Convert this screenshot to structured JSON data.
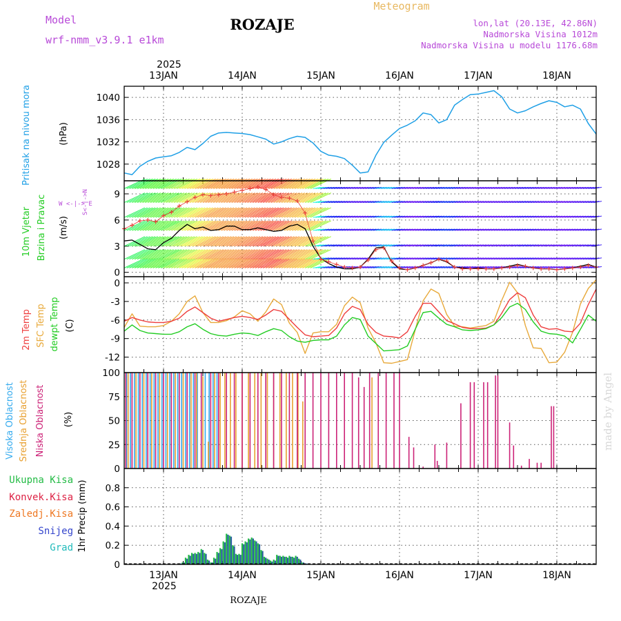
{
  "header": {
    "model_label": "Model",
    "model_name": "wrf-nmm_v3.9.1 e1km",
    "station": "ROZAJE",
    "product": "Meteogram",
    "coords": "lon,lat (20.13E, 42.86N)",
    "elevation": "Nadmorska Visina 1012m",
    "model_elevation": "Nadmorska Visina u modelu 1176.68m",
    "footer_station": "ROZAJE",
    "watermark": "made by Angel"
  },
  "colors": {
    "pressure": "#1e9fe6",
    "wind_obs": "#000000",
    "wind_model": "#e8403a",
    "t2m": "#ee3d3d",
    "tsfc": "#e8a93a",
    "dewpt": "#22cc22",
    "cloud_high": "#33aaee",
    "cloud_mid": "#e8a030",
    "cloud_low": "#cc2277",
    "precip_total": "#22bb44",
    "precip_conv": "#dd2244",
    "precip_frozen": "#ee7722",
    "precip_snow": "#3344cc",
    "precip_graupel": "#22bbbb",
    "axis_label_violet": "#b84ad8",
    "grid": "#555555"
  },
  "time_axis": {
    "year": "2025",
    "day_labels": [
      "13JAN",
      "14JAN",
      "15JAN",
      "16JAN",
      "17JAN",
      "18JAN"
    ],
    "start_day": 12.5,
    "end_day": 18.5
  },
  "panels": {
    "pressure": {
      "ylabel_1": "Pritisak na nivou mora",
      "ylabel_2": "(hPa)"
    },
    "wind": {
      "ylabel_1": "10m Vjetar",
      "ylabel_2": "Brzina i Pravac",
      "ylabel_3": "(m/s)",
      "compass_we": "W  <-|-> E",
      "compass_sn": "S<-|->N"
    },
    "temp": {
      "ylabel_1": "2m Temp",
      "ylabel_2": "SFC Temp",
      "ylabel_3": "dewpt Temp",
      "ylabel_4": "(C)"
    },
    "cloud": {
      "ylabel_1": "Visoka Oblacnost",
      "ylabel_2": "Srednja Oblacnost",
      "ylabel_3": "Niska Oblacnost",
      "ylabel_4": "(%)"
    },
    "precip": {
      "legend": [
        "Ukupna Kisa",
        "Konvek.Kisa",
        "Zaledj.Kisa",
        "Snijeg",
        "Grad"
      ],
      "ylabel": "1hr Precip (mm)"
    }
  },
  "chart_data": [
    {
      "type": "line",
      "panel": "pressure",
      "ylabel": "(hPa)",
      "ylim": [
        1025,
        1042
      ],
      "yticks": [
        1028,
        1032,
        1036,
        1040
      ],
      "x": [
        12.5,
        12.6,
        12.7,
        12.8,
        12.9,
        13.0,
        13.1,
        13.2,
        13.3,
        13.4,
        13.5,
        13.6,
        13.7,
        13.8,
        13.9,
        14.0,
        14.1,
        14.2,
        14.3,
        14.4,
        14.5,
        14.6,
        14.7,
        14.8,
        14.9,
        15.0,
        15.1,
        15.2,
        15.3,
        15.4,
        15.5,
        15.6,
        15.7,
        15.8,
        15.9,
        16.0,
        16.1,
        16.2,
        16.3,
        16.4,
        16.5,
        16.6,
        16.7,
        16.8,
        16.9,
        17.0,
        17.1,
        17.2,
        17.3,
        17.4,
        17.5,
        17.6,
        17.7,
        17.8,
        17.9,
        18.0,
        18.1,
        18.2,
        18.3,
        18.4,
        18.5
      ],
      "series": [
        {
          "values": [
            1026.4,
            1026.1,
            1027.6,
            1028.5,
            1029.1,
            1029.3,
            1029.5,
            1030.1,
            1031.0,
            1030.6,
            1031.7,
            1033.0,
            1033.6,
            1033.7,
            1033.6,
            1033.5,
            1033.3,
            1032.9,
            1032.5,
            1031.6,
            1032.0,
            1032.6,
            1033.0,
            1032.8,
            1031.8,
            1030.3,
            1029.6,
            1029.4,
            1029.0,
            1027.8,
            1026.4,
            1026.6,
            1029.6,
            1031.9,
            1033.2,
            1034.4,
            1035.0,
            1035.8,
            1037.2,
            1036.9,
            1035.4,
            1036.0,
            1038.6,
            1039.6,
            1040.5,
            1040.6,
            1040.9,
            1041.2,
            1040.1,
            1037.9,
            1037.2,
            1037.6,
            1038.3,
            1038.9,
            1039.4,
            1039.1,
            1038.3,
            1038.6,
            1037.9,
            1035.3,
            1033.4
          ]
        }
      ]
    },
    {
      "type": "line",
      "panel": "wind",
      "ylabel": "(m/s)",
      "ylim": [
        -0.5,
        10.5
      ],
      "yticks": [
        0,
        3,
        6,
        9
      ],
      "x": [
        12.5,
        12.6,
        12.7,
        12.8,
        12.9,
        13.0,
        13.1,
        13.2,
        13.3,
        13.4,
        13.5,
        13.6,
        13.7,
        13.8,
        13.9,
        14.0,
        14.1,
        14.2,
        14.3,
        14.4,
        14.5,
        14.6,
        14.7,
        14.8,
        14.9,
        15.0,
        15.1,
        15.2,
        15.3,
        15.4,
        15.5,
        15.6,
        15.7,
        15.8,
        15.9,
        16.0,
        16.1,
        16.2,
        16.3,
        16.4,
        16.5,
        16.6,
        16.7,
        16.8,
        16.9,
        17.0,
        17.1,
        17.2,
        17.3,
        17.4,
        17.5,
        17.6,
        17.7,
        17.8,
        17.9,
        18.0,
        18.1,
        18.2,
        18.3,
        18.4,
        18.5
      ],
      "series": [
        {
          "values": [
            3.6,
            3.7,
            3.2,
            2.7,
            2.6,
            3.4,
            3.9,
            4.8,
            5.5,
            5.0,
            5.2,
            4.8,
            4.9,
            5.3,
            5.3,
            4.9,
            4.9,
            5.1,
            4.9,
            4.7,
            4.8,
            5.3,
            5.5,
            5.0,
            3.0,
            1.6,
            1.0,
            0.6,
            0.4,
            0.4,
            0.6,
            1.5,
            2.8,
            2.9,
            1.2,
            0.4,
            0.3,
            0.5,
            0.8,
            1.1,
            1.5,
            1.2,
            0.6,
            0.5,
            0.4,
            0.5,
            0.4,
            0.4,
            0.5,
            0.7,
            0.9,
            0.7,
            0.5,
            0.4,
            0.4,
            0.3,
            0.4,
            0.5,
            0.7,
            0.9,
            0.6
          ]
        },
        {
          "values": [
            5.0,
            5.4,
            5.9,
            6.0,
            5.8,
            6.5,
            6.9,
            7.6,
            8.1,
            8.6,
            8.9,
            8.8,
            8.9,
            9.0,
            9.2,
            9.4,
            9.6,
            9.8,
            9.5,
            8.9,
            8.6,
            8.5,
            8.2,
            6.8,
            3.6,
            1.5,
            1.2,
            0.9,
            0.6,
            0.5,
            0.6,
            1.4,
            2.6,
            2.8,
            1.3,
            0.5,
            0.3,
            0.5,
            0.8,
            1.1,
            1.5,
            1.3,
            0.6,
            0.4,
            0.4,
            0.4,
            0.4,
            0.4,
            0.5,
            0.6,
            0.8,
            0.7,
            0.5,
            0.4,
            0.4,
            0.3,
            0.4,
            0.5,
            0.6,
            0.8,
            0.6
          ]
        }
      ]
    },
    {
      "type": "line",
      "panel": "temp",
      "ylabel": "(C)",
      "ylim": [
        -14.5,
        1
      ],
      "yticks": [
        0,
        -3,
        -6,
        -9,
        -12
      ],
      "x": [
        12.5,
        12.6,
        12.7,
        12.8,
        12.9,
        13.0,
        13.1,
        13.2,
        13.3,
        13.4,
        13.5,
        13.6,
        13.7,
        13.8,
        13.9,
        14.0,
        14.1,
        14.2,
        14.3,
        14.4,
        14.5,
        14.6,
        14.7,
        14.8,
        14.9,
        15.0,
        15.1,
        15.2,
        15.3,
        15.4,
        15.5,
        15.6,
        15.7,
        15.8,
        15.9,
        16.0,
        16.1,
        16.2,
        16.3,
        16.4,
        16.5,
        16.6,
        16.7,
        16.8,
        16.9,
        17.0,
        17.1,
        17.2,
        17.3,
        17.4,
        17.5,
        17.6,
        17.7,
        17.8,
        17.9,
        18.0,
        18.1,
        18.2,
        18.3,
        18.4,
        18.5
      ],
      "series": [
        {
          "values": [
            -6.2,
            -5.6,
            -6.0,
            -6.3,
            -6.4,
            -6.4,
            -6.2,
            -5.7,
            -4.6,
            -3.9,
            -4.8,
            -5.7,
            -6.2,
            -5.9,
            -5.6,
            -5.4,
            -5.6,
            -5.9,
            -5.2,
            -4.3,
            -4.6,
            -5.9,
            -7.2,
            -8.4,
            -8.7,
            -8.6,
            -8.5,
            -7.3,
            -5.0,
            -3.8,
            -4.3,
            -6.7,
            -8.0,
            -8.6,
            -8.7,
            -8.9,
            -7.9,
            -5.4,
            -3.3,
            -3.3,
            -4.7,
            -6.1,
            -6.6,
            -7.2,
            -7.4,
            -7.4,
            -7.3,
            -6.8,
            -4.9,
            -2.7,
            -1.6,
            -2.4,
            -5.2,
            -7.1,
            -7.5,
            -7.4,
            -7.8,
            -7.9,
            -6.5,
            -3.5,
            -1.0
          ]
        },
        {
          "values": [
            -7.2,
            -5.0,
            -7.0,
            -7.1,
            -7.1,
            -6.9,
            -6.2,
            -5.0,
            -3.0,
            -2.1,
            -4.8,
            -6.4,
            -6.4,
            -6.1,
            -5.5,
            -4.5,
            -5.0,
            -6.2,
            -4.7,
            -2.6,
            -3.5,
            -6.5,
            -8.0,
            -11.4,
            -8.1,
            -7.9,
            -7.9,
            -6.7,
            -3.7,
            -2.3,
            -3.2,
            -7.3,
            -9.7,
            -12.9,
            -13.0,
            -12.7,
            -12.4,
            -7.6,
            -2.9,
            -1.0,
            -1.7,
            -5.1,
            -7.0,
            -7.1,
            -7.3,
            -7.1,
            -6.9,
            -6.2,
            -2.8,
            0.1,
            -1.6,
            -6.9,
            -10.5,
            -10.6,
            -12.9,
            -12.8,
            -11.2,
            -8.0,
            -3.4,
            -0.9,
            0.5
          ]
        },
        {
          "values": [
            -7.8,
            -6.8,
            -7.7,
            -8.1,
            -8.2,
            -8.3,
            -8.3,
            -7.9,
            -7.1,
            -6.6,
            -7.5,
            -8.2,
            -8.5,
            -8.6,
            -8.3,
            -8.1,
            -8.2,
            -8.5,
            -7.9,
            -7.4,
            -7.7,
            -8.7,
            -9.4,
            -9.6,
            -9.3,
            -9.2,
            -9.2,
            -8.6,
            -6.8,
            -5.6,
            -5.9,
            -8.6,
            -9.8,
            -11.0,
            -10.9,
            -10.8,
            -10.2,
            -7.5,
            -4.8,
            -4.6,
            -5.7,
            -6.7,
            -7.1,
            -7.6,
            -7.7,
            -7.6,
            -7.4,
            -6.8,
            -5.6,
            -3.9,
            -3.3,
            -4.3,
            -6.3,
            -7.8,
            -8.2,
            -8.3,
            -8.6,
            -9.7,
            -7.5,
            -5.2,
            -6.2
          ]
        }
      ]
    },
    {
      "type": "bar",
      "panel": "cloud",
      "ylabel": "(%)",
      "ylim": [
        0,
        100
      ],
      "yticks": [
        0,
        25,
        50,
        75,
        100
      ],
      "series": [
        {
          "name": "Visoka Oblacnost",
          "x": [
            12.53,
            12.58,
            12.63,
            12.68,
            12.73,
            12.78,
            12.83,
            12.88,
            12.93,
            12.98,
            13.03,
            13.08,
            13.13,
            13.18,
            13.23,
            13.28,
            13.33,
            13.38,
            13.43,
            13.48,
            13.53,
            13.58,
            13.63,
            13.68
          ],
          "values": [
            100,
            100,
            100,
            100,
            100,
            100,
            100,
            100,
            100,
            100,
            100,
            100,
            100,
            100,
            100,
            100,
            100,
            100,
            100,
            100,
            100,
            100,
            100,
            100
          ]
        },
        {
          "name": "Srednja Oblacnost",
          "x": [
            12.55,
            12.65,
            12.75,
            12.85,
            12.95,
            13.05,
            13.15,
            13.25,
            13.35,
            13.42,
            13.5,
            13.57,
            13.65,
            13.72,
            13.78,
            13.85,
            13.92,
            14.0,
            14.08,
            14.16,
            14.24,
            14.32,
            14.4,
            14.48,
            14.56,
            14.64,
            14.71,
            14.77,
            15.65
          ],
          "values": [
            100,
            100,
            100,
            100,
            100,
            100,
            100,
            100,
            100,
            100,
            96,
            28,
            100,
            100,
            100,
            100,
            100,
            100,
            100,
            100,
            100,
            100,
            100,
            100,
            100,
            100,
            100,
            70,
            95
          ]
        },
        {
          "name": "Niska Oblacnost",
          "x": [
            12.52,
            12.6,
            12.7,
            12.8,
            12.9,
            13.0,
            13.1,
            13.2,
            13.3,
            13.4,
            13.48,
            13.6,
            13.7,
            13.8,
            13.9,
            14.0,
            14.1,
            14.2,
            14.3,
            14.4,
            14.5,
            14.6,
            14.7,
            14.8,
            14.9,
            15.0,
            15.1,
            15.2,
            15.3,
            15.4,
            15.48,
            15.55,
            15.62,
            15.73,
            15.83,
            15.93,
            16.0,
            16.12,
            16.18,
            16.3,
            16.45,
            16.48,
            16.6,
            16.78,
            16.9,
            16.95,
            17.07,
            17.12,
            17.22,
            17.25,
            17.4,
            17.45,
            17.55,
            17.65,
            17.75,
            17.8,
            17.93,
            17.96
          ],
          "values": [
            100,
            100,
            100,
            100,
            100,
            100,
            100,
            100,
            100,
            100,
            100,
            100,
            100,
            100,
            100,
            100,
            100,
            100,
            100,
            100,
            100,
            100,
            100,
            100,
            100,
            100,
            100,
            100,
            100,
            100,
            95,
            85,
            100,
            100,
            100,
            100,
            100,
            33,
            22,
            2,
            25,
            8,
            27,
            68,
            90,
            90,
            90,
            90,
            97,
            97,
            48,
            24,
            3,
            10,
            6,
            6,
            65,
            65
          ]
        }
      ]
    },
    {
      "type": "bar",
      "panel": "precip",
      "ylabel": "1hr Precip (mm)",
      "ylim": [
        0,
        1.0
      ],
      "yticks": [
        0,
        0.2,
        0.4,
        0.6,
        0.8
      ],
      "x": [
        13.21,
        13.25,
        13.29,
        13.33,
        13.37,
        13.41,
        13.45,
        13.49,
        13.53,
        13.57,
        13.61,
        13.65,
        13.69,
        13.73,
        13.77,
        13.81,
        13.85,
        13.89,
        13.93,
        13.97,
        14.01,
        14.05,
        14.09,
        14.13,
        14.17,
        14.21,
        14.25,
        14.29,
        14.33,
        14.37,
        14.41,
        14.45,
        14.49,
        14.53,
        14.57,
        14.61,
        14.65,
        14.69,
        14.73,
        14.77,
        14.81
      ],
      "series": [
        {
          "name": "Ukupna Kisa",
          "values": [
            0.01,
            0.02,
            0.07,
            0.1,
            0.12,
            0.12,
            0.13,
            0.16,
            0.12,
            0.05,
            0.02,
            0.07,
            0.13,
            0.17,
            0.24,
            0.32,
            0.3,
            0.2,
            0.11,
            0.11,
            0.22,
            0.24,
            0.27,
            0.28,
            0.25,
            0.22,
            0.15,
            0.08,
            0.06,
            0.04,
            0.05,
            0.1,
            0.09,
            0.09,
            0.08,
            0.09,
            0.08,
            0.09,
            0.06,
            0.02,
            0.01
          ]
        },
        {
          "name": "Snijeg",
          "values": [
            0.01,
            0.02,
            0.06,
            0.09,
            0.11,
            0.11,
            0.12,
            0.15,
            0.11,
            0.04,
            0.02,
            0.06,
            0.12,
            0.16,
            0.23,
            0.31,
            0.29,
            0.19,
            0.1,
            0.1,
            0.21,
            0.23,
            0.26,
            0.27,
            0.24,
            0.21,
            0.14,
            0.07,
            0.05,
            0.03,
            0.04,
            0.09,
            0.08,
            0.08,
            0.07,
            0.08,
            0.07,
            0.08,
            0.05,
            0.02,
            0.01
          ]
        }
      ]
    }
  ]
}
